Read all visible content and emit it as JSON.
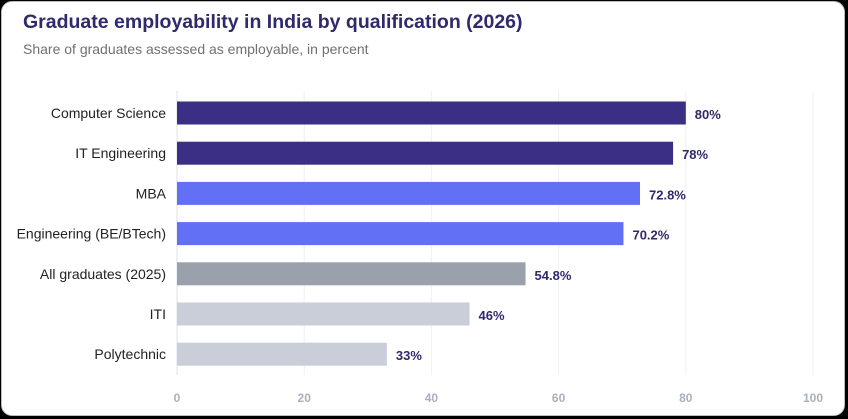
{
  "title": "Graduate employability in India by qualification (2026)",
  "subtitle": "Share of graduates assessed as employable, in percent",
  "chart_data": {
    "type": "bar",
    "orientation": "horizontal",
    "title": "Graduate employability in India by qualification (2026)",
    "subtitle": "Share of graduates assessed as employable, in percent",
    "xlabel": "",
    "ylabel": "",
    "xlim": [
      0,
      100
    ],
    "x_ticks": [
      0,
      20,
      40,
      60,
      80,
      100
    ],
    "grid": true,
    "categories": [
      "Computer Science",
      "IT Engineering",
      "MBA",
      "Engineering (BE/BTech)",
      "All graduates (2025)",
      "ITI",
      "Polytechnic"
    ],
    "values": [
      80,
      78,
      72.8,
      70.2,
      54.8,
      46,
      33
    ],
    "value_labels": [
      "80%",
      "78%",
      "72.8%",
      "70.2%",
      "54.8%",
      "46%",
      "33%"
    ],
    "bar_colors": [
      "#3a2f85",
      "#3a2f85",
      "#6170f5",
      "#6170f5",
      "#9aa1ad",
      "#c9ced9",
      "#c9ced9"
    ]
  }
}
